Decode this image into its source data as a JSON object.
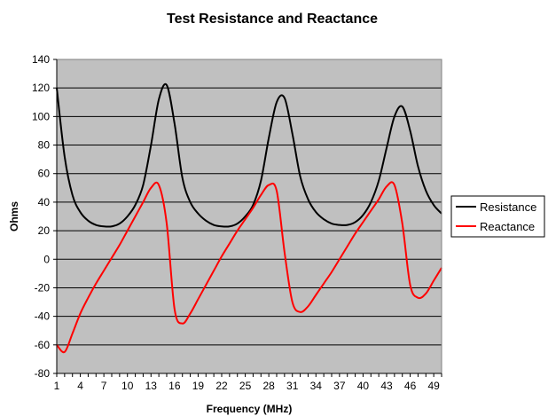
{
  "chart_data": {
    "type": "line",
    "title": "Test Resistance and Reactance",
    "xlabel": "Frequency (MHz)",
    "ylabel": "Ohms",
    "xlim": [
      1,
      50
    ],
    "ylim": [
      -80,
      140
    ],
    "yticks": [
      -80,
      -60,
      -40,
      -20,
      0,
      20,
      40,
      60,
      80,
      100,
      120,
      140
    ],
    "xtick_labels": [
      1,
      4,
      7,
      10,
      13,
      16,
      19,
      22,
      25,
      28,
      31,
      34,
      37,
      40,
      43,
      46,
      49
    ],
    "grid": "horizontal",
    "legend": "right",
    "background": "#c0c0c0",
    "x": [
      1,
      2,
      3,
      4,
      5,
      6,
      7,
      8,
      9,
      10,
      11,
      12,
      13,
      14,
      15,
      16,
      17,
      18,
      19,
      20,
      21,
      22,
      23,
      24,
      25,
      26,
      27,
      28,
      29,
      30,
      31,
      32,
      33,
      34,
      35,
      36,
      37,
      38,
      39,
      40,
      41,
      42,
      43,
      44,
      45,
      46,
      47,
      48,
      49,
      50
    ],
    "series": [
      {
        "name": "Resistance",
        "color": "#000000",
        "values": [
          120,
          72,
          45,
          33,
          27,
          24,
          23,
          23,
          25,
          30,
          38,
          52,
          80,
          112,
          122,
          95,
          57,
          40,
          32,
          27,
          24,
          23,
          23,
          25,
          30,
          38,
          55,
          85,
          110,
          113,
          88,
          58,
          42,
          33,
          28,
          25,
          24,
          24,
          26,
          31,
          40,
          55,
          78,
          100,
          107,
          90,
          65,
          48,
          38,
          32
        ]
      },
      {
        "name": "Reactance",
        "color": "#ff0000",
        "values": [
          -60,
          -65,
          -52,
          -38,
          -27,
          -17,
          -8,
          1,
          10,
          20,
          30,
          40,
          50,
          52,
          25,
          -35,
          -45,
          -38,
          -28,
          -18,
          -8,
          2,
          11,
          20,
          28,
          36,
          45,
          52,
          48,
          5,
          -30,
          -37,
          -33,
          -25,
          -17,
          -9,
          0,
          9,
          18,
          26,
          34,
          42,
          51,
          52,
          25,
          -18,
          -27,
          -24,
          -15,
          -6
        ]
      }
    ]
  }
}
